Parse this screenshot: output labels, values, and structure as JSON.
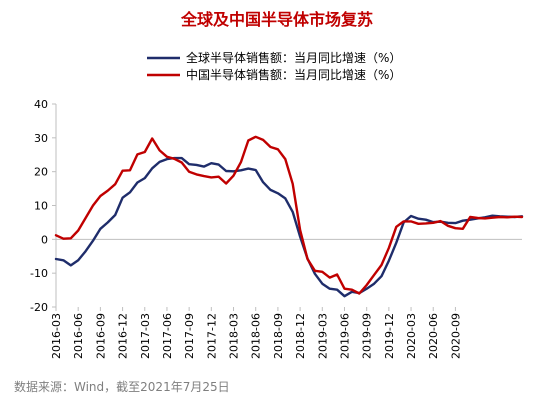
{
  "chart_data": {
    "type": "line",
    "title": "全球及中国半导体市场复苏",
    "source": "数据来源：Wind，截至2021年7月25日",
    "xlabel": "",
    "ylabel": "",
    "ylim": [
      -20,
      40
    ],
    "yticks": [
      -20,
      -10,
      0,
      10,
      20,
      30,
      40
    ],
    "xlim": [
      "2016-03",
      "2021-06"
    ],
    "xticks": [
      "2016-03",
      "2016-06",
      "2016-09",
      "2016-12",
      "2017-03",
      "2017-06",
      "2017-09",
      "2017-12",
      "2018-03",
      "2018-06",
      "2018-09",
      "2018-12",
      "2019-03",
      "2019-06",
      "2019-09",
      "2019-12",
      "2020-03",
      "2020-06",
      "2020-09"
    ],
    "grid": false,
    "legend_position": "top",
    "colors": {
      "global": "#1f2d6b",
      "china": "#c00000",
      "title": "#c00000"
    },
    "series": [
      {
        "name": "全球半导体销售额：当月同比增速（%）",
        "color": "#1f2d6b",
        "x": [
          "2016-03",
          "2016-04",
          "2016-05",
          "2016-06",
          "2016-07",
          "2016-08",
          "2016-09",
          "2016-10",
          "2016-11",
          "2016-12",
          "2017-01",
          "2017-02",
          "2017-03",
          "2017-04",
          "2017-05",
          "2017-06",
          "2017-07",
          "2017-08",
          "2017-09",
          "2017-10",
          "2017-11",
          "2017-12",
          "2018-01",
          "2018-02",
          "2018-03",
          "2018-04",
          "2018-05",
          "2018-06",
          "2018-07",
          "2018-08",
          "2018-09",
          "2018-10",
          "2018-11",
          "2018-12",
          "2019-01",
          "2019-02",
          "2019-03",
          "2019-04",
          "2019-05",
          "2019-06",
          "2019-07",
          "2019-08",
          "2019-09",
          "2019-10",
          "2019-11",
          "2019-12",
          "2020-01",
          "2020-02",
          "2020-03",
          "2020-04",
          "2020-05",
          "2020-06",
          "2020-07",
          "2020-08",
          "2020-09",
          "2020-10",
          "2020-11",
          "2020-12",
          "2021-01",
          "2021-02",
          "2021-03",
          "2021-04",
          "2021-05",
          "2021-06"
        ],
        "values": [
          -5.8,
          -6.2,
          -7.7,
          -6.2,
          -3.5,
          -0.4,
          3.1,
          5.0,
          7.2,
          12.3,
          13.9,
          16.8,
          18.1,
          21.0,
          22.9,
          23.7,
          24.0,
          24.0,
          22.2,
          22.0,
          21.5,
          22.5,
          22.1,
          20.2,
          20.1,
          20.4,
          20.9,
          20.5,
          16.9,
          14.6,
          13.6,
          12.1,
          8.1,
          0.8,
          -5.7,
          -10.2,
          -13.1,
          -14.6,
          -14.9,
          -16.8,
          -15.5,
          -15.9,
          -14.6,
          -13.1,
          -10.9,
          -6.3,
          -1.0,
          5.0,
          6.9,
          6.1,
          5.8,
          5.1,
          5.2,
          4.9,
          4.8,
          5.5,
          5.8,
          6.2,
          6.5,
          7.0,
          6.8,
          6.7,
          6.6,
          6.8
        ]
      },
      {
        "name": "中国半导体销售额：当月同比增速（%）",
        "color": "#c00000",
        "x": [
          "2016-03",
          "2016-04",
          "2016-05",
          "2016-06",
          "2016-07",
          "2016-08",
          "2016-09",
          "2016-10",
          "2016-11",
          "2016-12",
          "2017-01",
          "2017-02",
          "2017-03",
          "2017-04",
          "2017-05",
          "2017-06",
          "2017-07",
          "2017-08",
          "2017-09",
          "2017-10",
          "2017-11",
          "2017-12",
          "2018-01",
          "2018-02",
          "2018-03",
          "2018-04",
          "2018-05",
          "2018-06",
          "2018-07",
          "2018-08",
          "2018-09",
          "2018-10",
          "2018-11",
          "2018-12",
          "2019-01",
          "2019-02",
          "2019-03",
          "2019-04",
          "2019-05",
          "2019-06",
          "2019-07",
          "2019-08",
          "2019-09",
          "2019-10",
          "2019-11",
          "2019-12",
          "2020-01",
          "2020-02",
          "2020-03",
          "2020-04",
          "2020-05",
          "2020-06",
          "2020-07",
          "2020-08",
          "2020-09",
          "2020-10",
          "2020-11",
          "2020-12",
          "2021-01",
          "2021-02",
          "2021-03",
          "2021-04",
          "2021-05",
          "2021-06"
        ],
        "values": [
          1.2,
          0.2,
          0.3,
          2.6,
          6.3,
          10.0,
          12.8,
          14.4,
          16.3,
          20.3,
          20.4,
          25.1,
          25.8,
          29.8,
          26.3,
          24.4,
          23.8,
          22.7,
          20.0,
          19.2,
          18.7,
          18.3,
          18.5,
          16.5,
          18.8,
          22.8,
          29.2,
          30.3,
          29.4,
          27.3,
          26.6,
          23.7,
          16.4,
          2.8,
          -5.8,
          -9.3,
          -9.6,
          -11.3,
          -10.4,
          -14.6,
          -14.9,
          -16.0,
          -13.5,
          -10.5,
          -7.6,
          -2.5,
          3.7,
          5.3,
          5.3,
          4.6,
          4.7,
          4.9,
          5.4,
          4.0,
          3.3,
          3.1,
          6.6,
          6.3,
          6.2,
          6.4,
          6.6,
          6.5,
          6.7,
          6.6
        ]
      }
    ]
  }
}
